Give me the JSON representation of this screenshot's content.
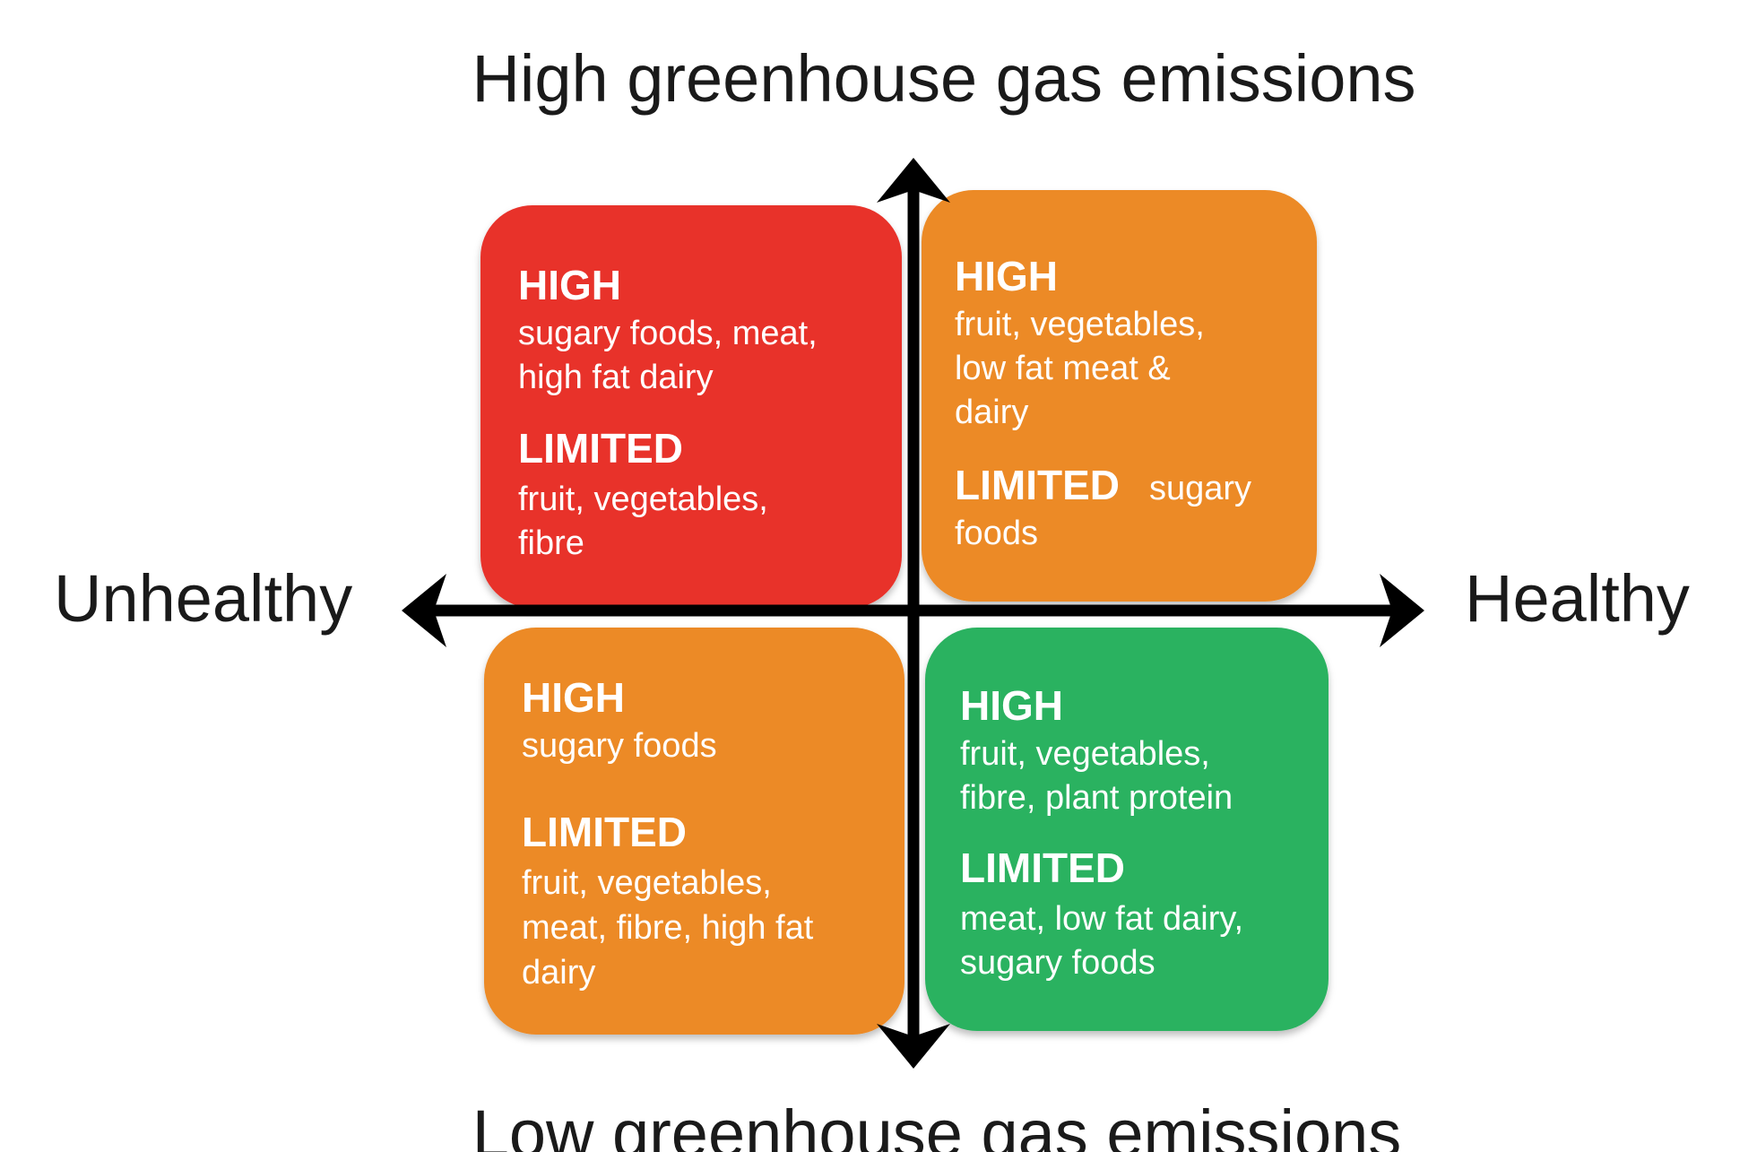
{
  "axes": {
    "top": "High greenhouse gas emissions",
    "bottom": "Low greenhouse gas emissions",
    "left": "Unhealthy",
    "right": "Healthy"
  },
  "quadrants": [
    {
      "high": "HIGH",
      "high_items": [
        "sugary foods, meat,",
        "high fat dairy"
      ],
      "limited": "LIMITED",
      "limited_items": [
        "fruit, vegetables,",
        "fibre"
      ]
    },
    {
      "high": "HIGH",
      "high_items": [
        "fruit, vegetables,",
        "low fat meat &",
        "dairy"
      ],
      "limited": "LIMITED",
      "limited_items": [
        "sugary",
        "foods"
      ]
    },
    {
      "high": "HIGH",
      "high_items": [
        "sugary foods"
      ],
      "limited": "LIMITED",
      "limited_items": [
        "fruit, vegetables,",
        "meat, fibre, high fat",
        "dairy"
      ]
    },
    {
      "high": "HIGH",
      "high_items": [
        "fruit, vegetables,",
        "fibre, plant protein"
      ],
      "limited": "LIMITED",
      "limited_items": [
        "meat, low fat dairy,",
        "sugary foods"
      ]
    }
  ]
}
